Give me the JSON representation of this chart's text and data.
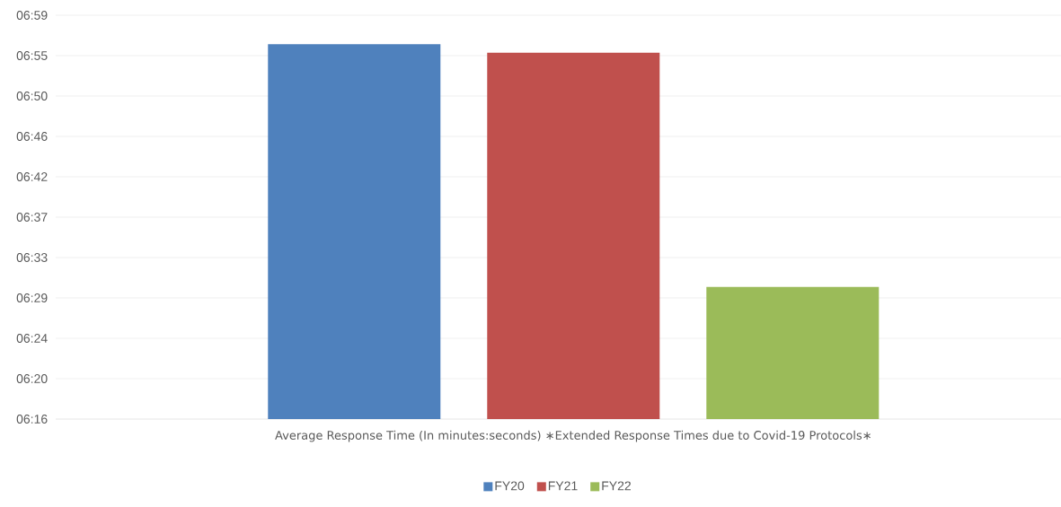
{
  "chart_data": {
    "type": "bar",
    "categories": [
      "Average Response Time (In minutes:seconds) ∗Extended Response Times due to Covid-19 Protocols∗"
    ],
    "series": [
      {
        "name": "FY20",
        "color": "#4f81bd",
        "values": [
          415.8
        ]
      },
      {
        "name": "FY21",
        "color": "#c0504d",
        "values": [
          414.9
        ]
      },
      {
        "name": "FY22",
        "color": "#9bbb59",
        "values": [
          389.9
        ]
      }
    ],
    "ylim": [
      375.8,
      418.9
    ],
    "yticks": [
      {
        "value": 375.8,
        "label": "06:16"
      },
      {
        "value": 380.11,
        "label": "06:20"
      },
      {
        "value": 384.42,
        "label": "06:24"
      },
      {
        "value": 388.73,
        "label": "06:29"
      },
      {
        "value": 393.04,
        "label": "06:33"
      },
      {
        "value": 397.35,
        "label": "06:37"
      },
      {
        "value": 401.66,
        "label": "06:42"
      },
      {
        "value": 405.97,
        "label": "06:46"
      },
      {
        "value": 410.28,
        "label": "06:50"
      },
      {
        "value": 414.59,
        "label": "06:55"
      },
      {
        "value": 418.9,
        "label": "06:59"
      }
    ],
    "grid": "y",
    "legend": "bottom"
  }
}
